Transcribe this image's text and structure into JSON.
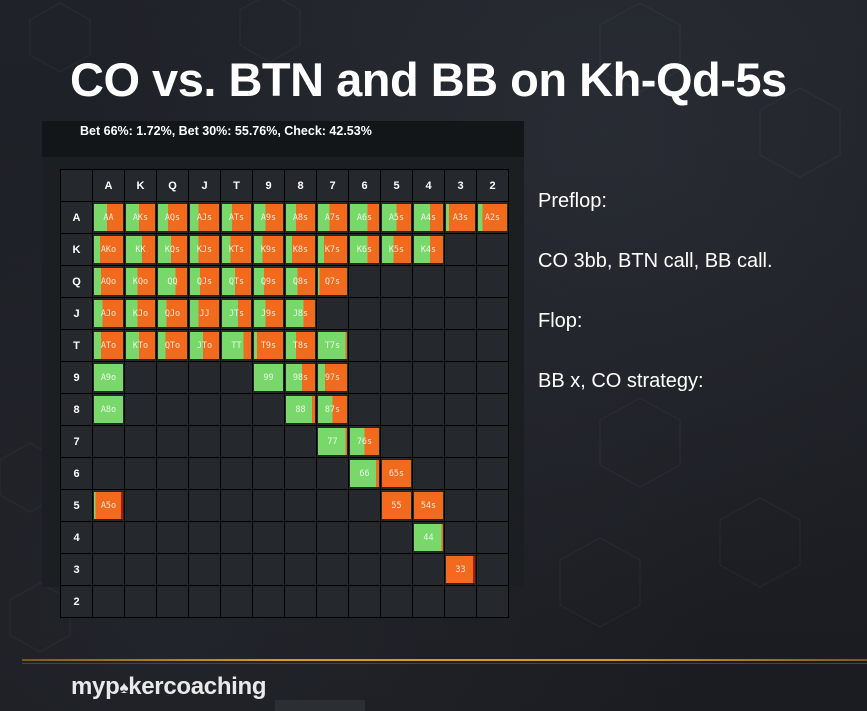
{
  "slide": {
    "title": "CO vs. BTN and BB on Kh-Qd-5s",
    "strategy_summary": "Bet 66%: 1.72%, Bet 30%: 55.76%, Check: 42.53%",
    "notes": [
      "Preflop:",
      "CO 3bb, BTN call, BB call.",
      "Flop:",
      "BB x, CO strategy:"
    ],
    "brand_prefix": "myp",
    "brand_suffix": "kercoaching",
    "brand_icon": "spade-icon"
  },
  "colors": {
    "bet_small": "#f26a1b",
    "check": "#78d86a",
    "bet_big": "#b01515",
    "empty": "#25292d",
    "footer_accent": "#d49a2a"
  },
  "matrix": {
    "ranks": [
      "A",
      "K",
      "Q",
      "J",
      "T",
      "9",
      "8",
      "7",
      "6",
      "5",
      "4",
      "3",
      "2"
    ],
    "hands": {
      "AA": {
        "label": "AA",
        "check": 0.45
      },
      "AKs": {
        "label": "AKs",
        "check": 0.45
      },
      "AQs": {
        "label": "AQs",
        "check": 0.35
      },
      "AJs": {
        "label": "AJs",
        "check": 0.3
      },
      "ATs": {
        "label": "ATs",
        "check": 0.35
      },
      "A9s": {
        "label": "A9s",
        "check": 0.4
      },
      "A8s": {
        "label": "A8s",
        "check": 0.35
      },
      "A7s": {
        "label": "A7s",
        "check": 0.4
      },
      "A6s": {
        "label": "A6s",
        "check": 0.6
      },
      "A5s": {
        "label": "A5s",
        "check": 0.5
      },
      "A4s": {
        "label": "A4s",
        "check": 0.55
      },
      "A3s": {
        "label": "A3s",
        "check": 0.1
      },
      "A2s": {
        "label": "A2s",
        "check": 0.15
      },
      "AKo": {
        "label": "AKo",
        "check": 0.2
      },
      "KK": {
        "label": "KK",
        "check": 0.55
      },
      "KQs": {
        "label": "KQs",
        "check": 0.45
      },
      "KJs": {
        "label": "KJs",
        "check": 0.3
      },
      "KTs": {
        "label": "KTs",
        "check": 0.3
      },
      "K9s": {
        "label": "K9s",
        "check": 0.3
      },
      "K8s": {
        "label": "K8s",
        "check": 0.2
      },
      "K7s": {
        "label": "K7s",
        "check": 0.2
      },
      "K6s": {
        "label": "K6s",
        "check": 0.6
      },
      "K5s": {
        "label": "K5s",
        "check": 0.4
      },
      "K4s": {
        "label": "K4s",
        "check": 0.55
      },
      "AQo": {
        "label": "AQo",
        "check": 0.25
      },
      "KQo": {
        "label": "KQo",
        "check": 0.4
      },
      "QQ": {
        "label": "QQ",
        "check": 0.6
      },
      "QJs": {
        "label": "QJs",
        "check": 0.35
      },
      "QTs": {
        "label": "QTs",
        "check": 0.45
      },
      "Q9s": {
        "label": "Q9s",
        "check": 0.35
      },
      "Q8s": {
        "label": "Q8s",
        "check": 0.4
      },
      "Q7s": {
        "label": "Q7s",
        "check": 0.05
      },
      "AJo": {
        "label": "AJo",
        "check": 0.3
      },
      "KJo": {
        "label": "KJo",
        "check": 0.4
      },
      "QJo": {
        "label": "QJo",
        "check": 0.3
      },
      "JJ": {
        "label": "JJ",
        "check": 0.3
      },
      "JTs": {
        "label": "JTs",
        "check": 0.55
      },
      "J9s": {
        "label": "J9s",
        "check": 0.4
      },
      "J8s": {
        "label": "J8s",
        "check": 0.6
      },
      "ATo": {
        "label": "ATo",
        "check": 0.25
      },
      "KTo": {
        "label": "KTo",
        "check": 0.45
      },
      "QTo": {
        "label": "QTo",
        "check": 0.25
      },
      "JTo": {
        "label": "JTo",
        "check": 0.45
      },
      "TT": {
        "label": "TT",
        "check": 0.75
      },
      "T9s": {
        "label": "T9s",
        "check": 0.1
      },
      "T8s": {
        "label": "T8s",
        "check": 0.35
      },
      "T7s": {
        "label": "T7s",
        "check": 0.95
      },
      "A9o": {
        "label": "A9o",
        "check": 1.0
      },
      "99": {
        "label": "99",
        "check": 1.0
      },
      "98s": {
        "label": "98s",
        "check": 0.55
      },
      "97s": {
        "label": "97s",
        "check": 0.25
      },
      "A8o": {
        "label": "A8o",
        "check": 1.0
      },
      "88": {
        "label": "88",
        "check": 0.9
      },
      "87s": {
        "label": "87s",
        "check": 0.5
      },
      "77": {
        "label": "77",
        "check": 0.95
      },
      "76s": {
        "label": "76s",
        "check": 0.5
      },
      "66": {
        "label": "66",
        "check": 0.9
      },
      "65s": {
        "label": "65s",
        "check": 0.0
      },
      "A5o": {
        "label": "A5o",
        "check": 0.05,
        "big": 0.07
      },
      "55": {
        "label": "55",
        "check": 0.0
      },
      "54s": {
        "label": "54s",
        "check": 0.0
      },
      "44": {
        "label": "44",
        "check": 0.95
      },
      "33": {
        "label": "33",
        "check": 0.0,
        "big": 0.07
      }
    }
  }
}
